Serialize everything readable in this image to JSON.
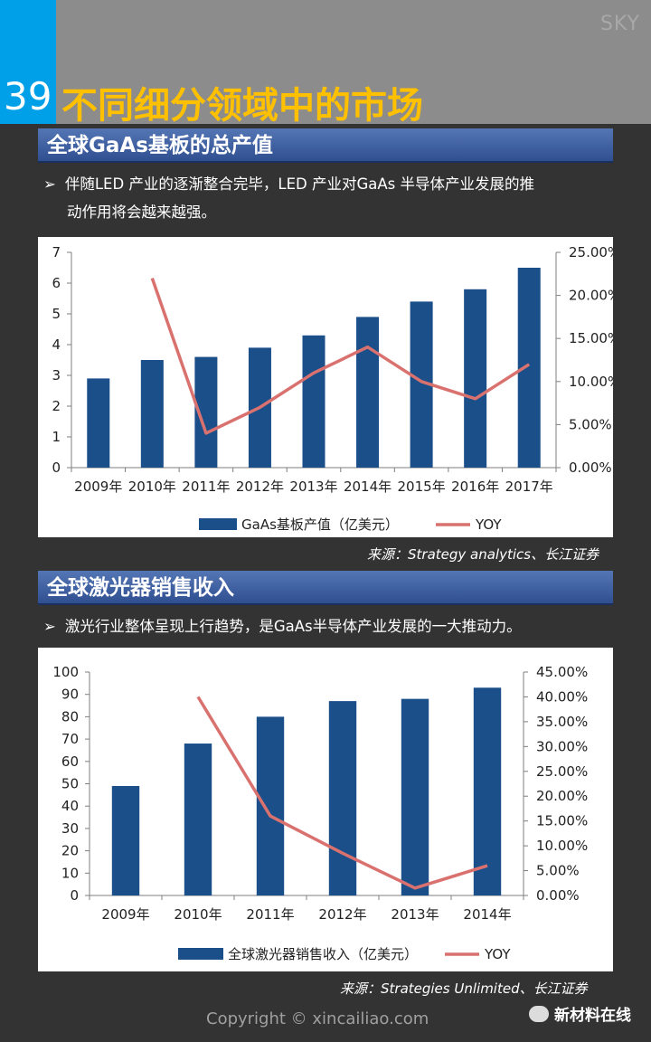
{
  "header": {
    "corner_label": "SKY",
    "page_number": "39",
    "title": "不同细分领域中的市场"
  },
  "section1": {
    "heading": "全球GaAs基板的总产值",
    "bullet_line1": "伴随LED 产业的逐渐整合完毕，LED 产业对GaAs 半导体产业发展的推",
    "bullet_line2": "动作用将会越来越强。",
    "source": "来源：Strategy analytics、长江证券"
  },
  "section2": {
    "heading": "全球激光器销售收入",
    "bullet_line1": "激光行业整体呈现上行趋势，是GaAs半导体产业发展的一大推动力。",
    "source": "来源：Strategies Unlimited、长江证券"
  },
  "footer": {
    "copyright": "Copyright © xincailiao.com",
    "brand": "新材料在线"
  },
  "colors": {
    "bar": "#1b4f8a",
    "line": "#d9716f",
    "accent_title": "#ffc000",
    "accent_blue": "#00a0e9"
  },
  "chart_data": [
    {
      "type": "bar",
      "categories": [
        "2009年",
        "2010年",
        "2011年",
        "2012年",
        "2013年",
        "2014年",
        "2015年",
        "2016年",
        "2017年"
      ],
      "series": [
        {
          "name": "GaAs基板产值（亿美元）",
          "type": "bar",
          "axis": "left",
          "values": [
            2.9,
            3.5,
            3.6,
            3.9,
            4.3,
            4.9,
            5.4,
            5.8,
            6.5
          ]
        },
        {
          "name": "YOY",
          "type": "line",
          "axis": "right",
          "values": [
            null,
            22.0,
            4.0,
            7.0,
            11.0,
            14.0,
            10.0,
            8.0,
            12.0
          ]
        }
      ],
      "ylim_left": [
        0,
        7
      ],
      "yticks_left": [
        "0",
        "1",
        "2",
        "3",
        "4",
        "5",
        "6",
        "7"
      ],
      "ylim_right": [
        0,
        25
      ],
      "yticks_right": [
        "0.00%",
        "5.00%",
        "10.00%",
        "15.00%",
        "20.00%",
        "25.00%"
      ],
      "legend_position": "bottom"
    },
    {
      "type": "bar",
      "categories": [
        "2009年",
        "2010年",
        "2011年",
        "2012年",
        "2013年",
        "2014年"
      ],
      "series": [
        {
          "name": "全球激光器销售收入（亿美元）",
          "type": "bar",
          "axis": "left",
          "values": [
            49,
            68,
            80,
            87,
            88,
            93
          ]
        },
        {
          "name": "YOY",
          "type": "line",
          "axis": "right",
          "values": [
            null,
            40.0,
            16.0,
            8.5,
            1.5,
            6.0
          ]
        }
      ],
      "ylim_left": [
        0,
        100
      ],
      "yticks_left": [
        "0",
        "10",
        "20",
        "30",
        "40",
        "50",
        "60",
        "70",
        "80",
        "90",
        "100"
      ],
      "ylim_right": [
        0,
        45
      ],
      "yticks_right": [
        "0.00%",
        "5.00%",
        "10.00%",
        "15.00%",
        "20.00%",
        "25.00%",
        "30.00%",
        "35.00%",
        "40.00%",
        "45.00%"
      ],
      "legend_position": "bottom"
    }
  ]
}
